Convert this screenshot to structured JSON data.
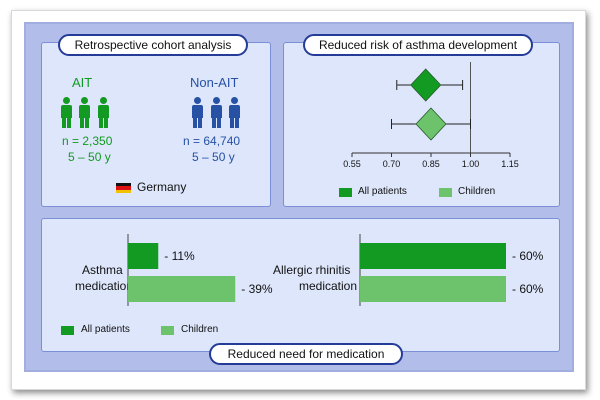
{
  "cohort": {
    "title": "Retrospective cohort analysis",
    "ait": {
      "label": "AIT",
      "n": "n = 2,350",
      "age": "5 – 50 y"
    },
    "nonait": {
      "label": "Non-AIT",
      "n": "n = 64,740",
      "age": "5 – 50 y"
    },
    "country": "Germany"
  },
  "risk": {
    "title": "Reduced risk of asthma development",
    "legend": {
      "all": "All patients",
      "children": "Children"
    }
  },
  "medication": {
    "title": "Reduced need for medication",
    "asthma_label_1": "Asthma",
    "asthma_label_2": "medication",
    "rhinitis_label_1": "Allergic rhinitis",
    "rhinitis_label_2": "medication",
    "legend": {
      "all": "All patients",
      "children": "Children"
    }
  },
  "colors": {
    "dark_green": "#129a22",
    "light_green": "#6cc36c",
    "blue_icon": "#2651a4",
    "pill_border": "#243c98",
    "panel_bg": "#dde6fb"
  },
  "chart_data": [
    {
      "type": "scatter",
      "title": "Reduced risk of asthma development",
      "xlabel": "",
      "ylabel": "",
      "xlim": [
        0.55,
        1.15
      ],
      "xticks": [
        "0.55",
        "0.70",
        "0.85",
        "1.00",
        "1.15"
      ],
      "reference_line": 1.0,
      "series": [
        {
          "name": "All patients",
          "estimate": 0.83,
          "ci": [
            0.72,
            0.97
          ],
          "color": "#129a22"
        },
        {
          "name": "Children",
          "estimate": 0.85,
          "ci": [
            0.7,
            1.0
          ],
          "color": "#6cc36c"
        }
      ]
    },
    {
      "type": "bar",
      "title": "Reduced need for medication",
      "categories": [
        "Asthma medication",
        "Allergic rhinitis medication"
      ],
      "series": [
        {
          "name": "All patients",
          "values": [
            -11,
            -60
          ],
          "labels": [
            "- 11%",
            "- 60%"
          ],
          "color": "#129a22"
        },
        {
          "name": "Children",
          "values": [
            -39,
            -60
          ],
          "labels": [
            "- 39%",
            "- 60%"
          ],
          "color": "#6cc36c"
        }
      ]
    }
  ]
}
